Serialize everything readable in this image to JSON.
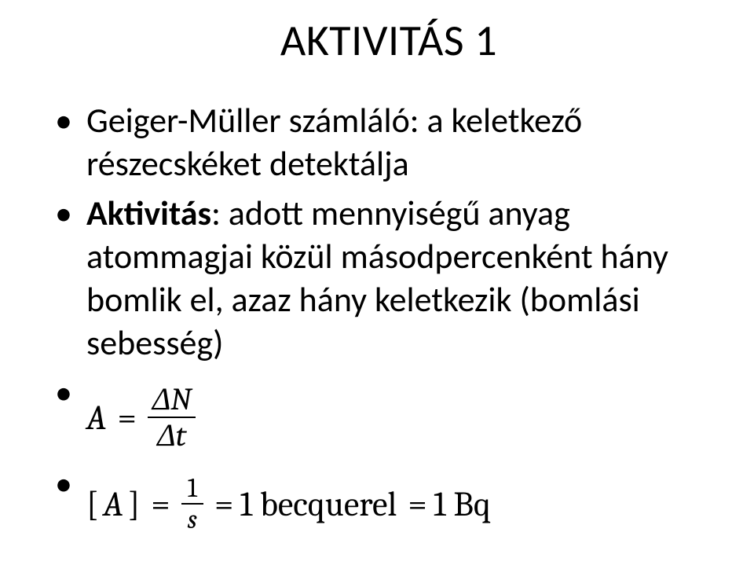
{
  "title": "AKTIVITÁS 1",
  "bullets": {
    "b1": "Geiger-Müller számláló: a keletkező részecskéket detektálja",
    "b2_bold": "Aktivitás",
    "b2_rest": ": adott mennyiségű anyag atommagjai közül másodpercenként hány bomlik el, azaz hány keletkezik (bomlási sebesség)"
  },
  "equations": {
    "eq1": {
      "lhs": "A",
      "op": "=",
      "num": "ΔN",
      "den": "Δt"
    },
    "eq2": {
      "lhs_open": "[",
      "lhs_var": "A",
      "lhs_close": "]",
      "op1": "=",
      "num": "1",
      "den": "s",
      "op2": "=",
      "val1": "1 becquerel",
      "op3": "=",
      "val2": "1 Bq"
    }
  },
  "colors": {
    "text": "#000000",
    "background": "#ffffff"
  },
  "fonts": {
    "body": "Calibri",
    "math": "Cambria Math"
  }
}
